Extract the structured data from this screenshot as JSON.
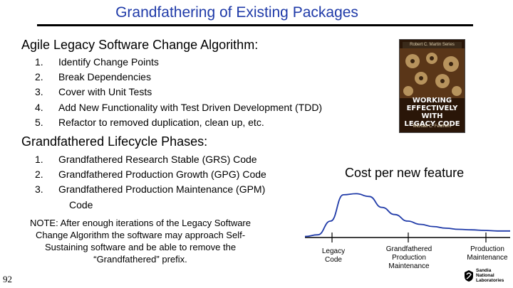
{
  "slide": {
    "title": "Grandfathering of Existing Packages",
    "page_number": "92"
  },
  "algorithm": {
    "heading": "Agile Legacy Software Change Algorithm:",
    "steps": [
      {
        "num": "1.",
        "text": "Identify Change Points"
      },
      {
        "num": "2.",
        "text": "Break Dependencies"
      },
      {
        "num": "3.",
        "text": "Cover with Unit Tests"
      },
      {
        "num": "4.",
        "text": "Add New Functionality with Test Driven Development (TDD)"
      },
      {
        "num": "5.",
        "text": "Refactor to removed duplication, clean up, etc."
      }
    ]
  },
  "lifecycle": {
    "heading": "Grandfathered Lifecycle Phases:",
    "phases": [
      {
        "num": "1.",
        "text": "Grandfathered Research Stable (GRS) Code"
      },
      {
        "num": "2.",
        "text": "Grandfathered Production Growth (GPG) Code"
      },
      {
        "num": "3.",
        "text": "Grandfathered Production Maintenance (GPM)"
      },
      {
        "num": "",
        "text": "Code"
      }
    ]
  },
  "note": "NOTE: After enough iterations of the Legacy Software Change Algorithm the software may approach Self-Sustaining software and be able to remove the “Grandfathered” prefix.",
  "book": {
    "series": "Robert C. Martin Series",
    "title_lines": [
      "WORKING",
      "EFFECTIVELY",
      "WITH",
      "LEGACY CODE"
    ],
    "author": "Michael C. Feathers"
  },
  "chart_data": {
    "type": "line",
    "title": "Cost per new feature",
    "x_labels": [
      {
        "lines": [
          "Legacy",
          "Code"
        ]
      },
      {
        "lines": [
          "Grandfathered",
          "Production",
          "Maintenance"
        ]
      },
      {
        "lines": [
          "Production",
          "Maintenance"
        ]
      }
    ],
    "series": [
      {
        "values": [
          0.02,
          0.05,
          0.3,
          0.78,
          0.8,
          0.75,
          0.55,
          0.42,
          0.3,
          0.24,
          0.2,
          0.17,
          0.15,
          0.14,
          0.13,
          0.12,
          0.12
        ]
      }
    ],
    "grid": false,
    "line_color": "#1f3aa8"
  },
  "logo": {
    "lines": [
      "Sandia",
      "National",
      "Laboratories"
    ]
  }
}
